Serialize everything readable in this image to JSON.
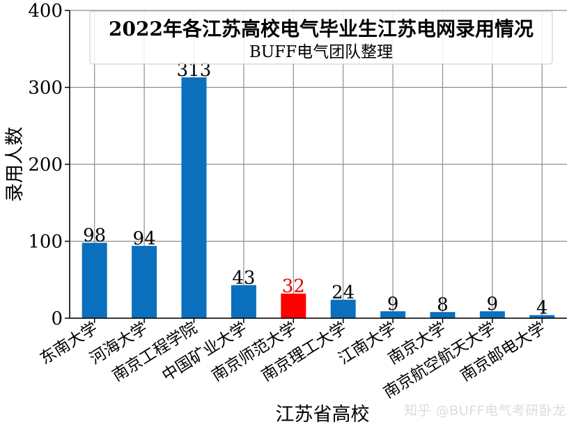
{
  "chart_data": {
    "type": "bar",
    "title": "2022年各江苏高校电气毕业生江苏电网录用情况",
    "subtitle": "BUFF电气团队整理",
    "xlabel": "江苏省高校",
    "ylabel": "录用人数",
    "ylim": [
      0,
      400
    ],
    "yticks": [
      0,
      100,
      200,
      300,
      400
    ],
    "grid": true,
    "categories": [
      "东南大学",
      "河海大学",
      "南京工程学院",
      "中国矿业大学",
      "南京师范大学",
      "南京理工大学",
      "江南大学",
      "南京大学",
      "南京航空航天大学",
      "南京邮电大学"
    ],
    "values": [
      98,
      94,
      313,
      43,
      32,
      24,
      9,
      8,
      9,
      4
    ],
    "bar_colors": [
      "#0a6fbd",
      "#0a6fbd",
      "#0a6fbd",
      "#0a6fbd",
      "#ff0000",
      "#0a6fbd",
      "#0a6fbd",
      "#0a6fbd",
      "#0a6fbd",
      "#0a6fbd"
    ],
    "label_colors": [
      "#000000",
      "#000000",
      "#000000",
      "#000000",
      "#e00000",
      "#000000",
      "#000000",
      "#000000",
      "#000000",
      "#000000"
    ]
  },
  "watermark": "知乎 @BUFF电气考研卧龙"
}
